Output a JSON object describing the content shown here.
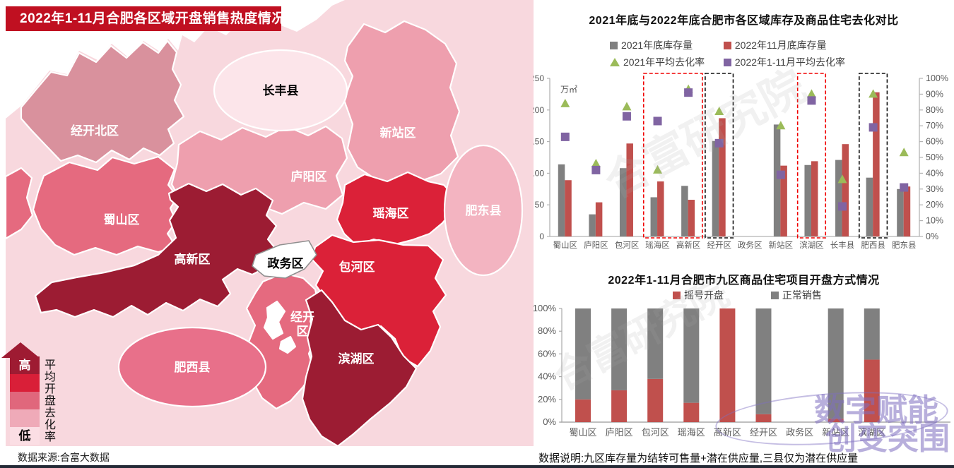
{
  "map": {
    "title": "2022年1-11月合肥各区域开盘销售热度情况",
    "source": "数据来源:合富大数据",
    "legend": {
      "high": "高",
      "low": "低",
      "axis_label": "平均开盘去化率",
      "colors": [
        "#9e1b32",
        "#d91f38",
        "#e0677c",
        "#efaab8",
        "#fbdee4"
      ]
    },
    "regions": [
      {
        "name": "经开北区",
        "color": "#d9919d",
        "label_color": "#ffffff"
      },
      {
        "name": "长丰县",
        "color": "#fce5ea",
        "label_color": "#000000"
      },
      {
        "name": "新站区",
        "color": "#ee9fae",
        "label_color": "#ffffff"
      },
      {
        "name": "庐阳区",
        "color": "#ee9fae",
        "label_color": "#ffffff"
      },
      {
        "name": "蜀山区",
        "color": "#e56a7f",
        "label_color": "#ffffff"
      },
      {
        "name": "瑶海区",
        "color": "#db2138",
        "label_color": "#ffffff"
      },
      {
        "name": "高新区",
        "color": "#9c1c33",
        "label_color": "#ffffff"
      },
      {
        "name": "包河区",
        "color": "#db2138",
        "label_color": "#ffffff"
      },
      {
        "name": "政务区",
        "color": "#ffffff",
        "label_color": "#000000"
      },
      {
        "name": "经开区",
        "color": "#e56a7f",
        "label_color": "#ffffff",
        "label_line1": "经开",
        "label_line2": "区"
      },
      {
        "name": "滨湖区",
        "color": "#9c1c33",
        "label_color": "#ffffff"
      },
      {
        "name": "肥西县",
        "color": "#e8708a",
        "label_color": "#ffffff"
      },
      {
        "name": "肥东县",
        "color": "#f3b4c1",
        "label_color": "#ffffff"
      }
    ],
    "base_color": "#f8d8de"
  },
  "notes": {
    "right": "数据说明:九区库存量为结转可售量+潜在供应量,三县仅为潜在供应量"
  },
  "watermarks": {
    "diagonal": "合富研究院",
    "badge_line1": "数字赋能",
    "badge_line2": "创变突围"
  },
  "chart_data": [
    {
      "type": "bar",
      "title": "2021年底与2022年底合肥市各区域库存及商品住宅去化对比",
      "unit_label": "万㎡",
      "categories": [
        "蜀山区",
        "庐阳区",
        "包河区",
        "瑶海区",
        "高新区",
        "经开区",
        "政务区",
        "新站区",
        "滨湖区",
        "长丰县",
        "肥西县",
        "肥东县"
      ],
      "series": [
        {
          "name": "2021年底库存量",
          "type": "bar",
          "axis": "left",
          "color": "#808080",
          "values": [
            114,
            35,
            108,
            62,
            80,
            151,
            null,
            177,
            113,
            121,
            93,
            75
          ]
        },
        {
          "name": "2022年11月底库存量",
          "type": "bar",
          "axis": "left",
          "color": "#c0504d",
          "values": [
            89,
            54,
            147,
            87,
            58,
            187,
            null,
            112,
            119,
            146,
            228,
            79
          ]
        },
        {
          "name": "2021年平均去化率",
          "type": "triangle",
          "axis": "right",
          "color": "#9bbb59",
          "values": [
            84,
            46,
            82,
            42,
            93,
            79,
            null,
            70,
            90,
            36,
            90,
            53
          ]
        },
        {
          "name": "2022年1-11月平均去化率",
          "type": "square",
          "axis": "right",
          "color": "#8064a2",
          "values": [
            63,
            42,
            76,
            73,
            91,
            59,
            null,
            39,
            86,
            19,
            69,
            31
          ]
        }
      ],
      "left_axis": {
        "min": 0,
        "max": 250,
        "step": 50,
        "suffix": ""
      },
      "right_axis": {
        "min": 0,
        "max": 100,
        "step": 10,
        "suffix": "%"
      },
      "highlights": [
        {
          "from": 3,
          "to": 4,
          "color": "#f00000"
        },
        {
          "from": 5,
          "to": 5,
          "color": "#111111"
        },
        {
          "from": 8,
          "to": 8,
          "color": "#f00000"
        },
        {
          "from": 10,
          "to": 10,
          "color": "#111111"
        }
      ],
      "legend_position": "top",
      "grid": false
    },
    {
      "type": "bar",
      "subtype": "stacked-percent",
      "title": "2022年1-11月合肥市九区商品住宅项目开盘方式情况",
      "categories": [
        "蜀山区",
        "庐阳区",
        "包河区",
        "瑶海区",
        "高新区",
        "经开区",
        "政务区",
        "新站区",
        "滨湖区"
      ],
      "series": [
        {
          "name": "摇号开盘",
          "color": "#c0504d",
          "values": [
            20,
            28,
            38,
            17,
            100,
            7,
            null,
            3,
            55
          ]
        },
        {
          "name": "正常销售",
          "color": "#808080",
          "values": [
            80,
            72,
            62,
            83,
            0,
            93,
            null,
            97,
            45
          ]
        }
      ],
      "y_axis": {
        "min": 0,
        "max": 100,
        "step": 20,
        "suffix": "%"
      },
      "legend_position": "top",
      "grid": false
    }
  ]
}
